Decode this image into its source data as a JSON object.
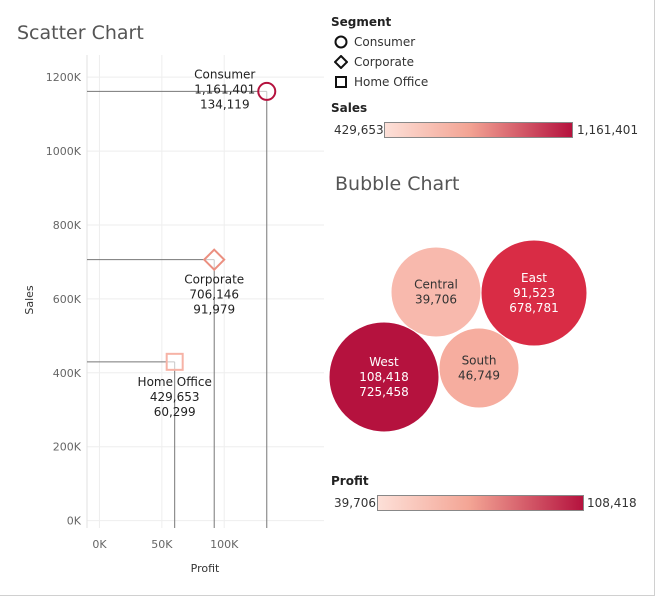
{
  "scatter": {
    "title": "Scatter Chart",
    "chart_data": {
      "type": "scatter",
      "xlabel": "Profit",
      "ylabel": "Sales",
      "xlim": [
        -10000,
        180000
      ],
      "ylim": [
        -20000,
        1260000
      ],
      "x_ticks": [
        0,
        50000,
        100000
      ],
      "x_tick_labels": [
        "0K",
        "50K",
        "100K"
      ],
      "y_ticks": [
        0,
        200000,
        400000,
        600000,
        800000,
        1000000,
        1200000
      ],
      "y_tick_labels": [
        "0K",
        "200K",
        "400K",
        "600K",
        "800K",
        "1000K",
        "1200K"
      ],
      "grid": true,
      "points": [
        {
          "segment": "Consumer",
          "x": 134119,
          "y": 1161401,
          "sales_label": "1,161,401",
          "profit_label": "134,119",
          "shape": "circle",
          "color": "#b5123e"
        },
        {
          "segment": "Corporate",
          "x": 91979,
          "y": 706146,
          "sales_label": "706,146",
          "profit_label": "91,979",
          "shape": "diamond",
          "color": "#eb8f80"
        },
        {
          "segment": "Home Office",
          "x": 60299,
          "y": 429653,
          "sales_label": "429,653",
          "profit_label": "60,299",
          "shape": "square",
          "color": "#f6b3a6"
        }
      ]
    }
  },
  "segment_legend": {
    "title": "Segment",
    "items": [
      {
        "label": "Consumer",
        "icon": "circle-icon"
      },
      {
        "label": "Corporate",
        "icon": "diamond-icon"
      },
      {
        "label": "Home Office",
        "icon": "square-icon"
      }
    ]
  },
  "sales_legend": {
    "title": "Sales",
    "min_label": "429,653",
    "max_label": "1,161,401",
    "color_min": "#fde0d8",
    "color_max": "#b5123e"
  },
  "bubble": {
    "title": "Bubble Chart",
    "chart_data": {
      "type": "bubble",
      "size_measure": "Sales",
      "color_measure": "Profit",
      "bubbles": [
        {
          "region": "Central",
          "profit": 39706,
          "profit_label": "39,706",
          "color": "#f8b9ad",
          "text_color": "#333333"
        },
        {
          "region": "East",
          "profit": 91523,
          "sales": 678781,
          "profit_label": "91,523",
          "sales_label": "678,781",
          "color": "#d92c45",
          "text_color": "#ffffff"
        },
        {
          "region": "West",
          "profit": 108418,
          "sales": 725458,
          "profit_label": "108,418",
          "sales_label": "725,458",
          "color": "#b5123e",
          "text_color": "#ffffff"
        },
        {
          "region": "South",
          "profit": 46749,
          "profit_label": "46,749",
          "color": "#f6ad9f",
          "text_color": "#333333"
        }
      ]
    }
  },
  "profit_legend": {
    "title": "Profit",
    "min_label": "39,706",
    "max_label": "108,418",
    "color_min": "#fde0d8",
    "color_max": "#b5123e"
  }
}
